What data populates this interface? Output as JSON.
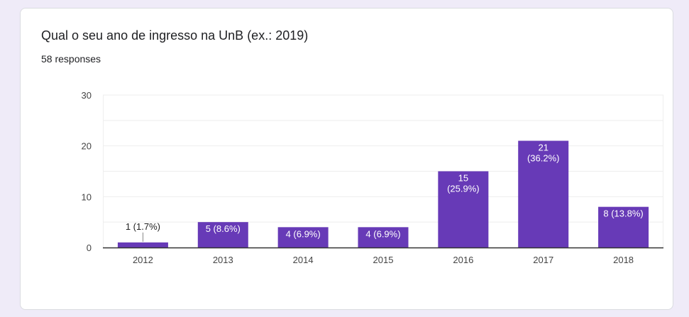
{
  "question": {
    "title": "Qual o seu ano de ingresso na UnB (ex.: 2019)",
    "responses": "58 responses"
  },
  "colors": {
    "bar": "#673ab7",
    "label_inside": "#ffffff",
    "label_outside": "#222222",
    "gridline": "#eeeeee",
    "axis": "#333333"
  },
  "chart_data": {
    "type": "bar",
    "categories": [
      "2012",
      "2013",
      "2014",
      "2015",
      "2016",
      "2017",
      "2018"
    ],
    "values": [
      1,
      5,
      4,
      4,
      15,
      21,
      8
    ],
    "data_labels": [
      [
        "1 (1.7%)"
      ],
      [
        "5 (8.6%)"
      ],
      [
        "4 (6.9%)"
      ],
      [
        "4 (6.9%)"
      ],
      [
        "15",
        "(25.9%)"
      ],
      [
        "21",
        "(36.2%)"
      ],
      [
        "8 (13.8%)"
      ]
    ],
    "y_ticks": [
      0,
      10,
      20,
      30
    ],
    "ylim": [
      0,
      30
    ],
    "grid": true
  }
}
